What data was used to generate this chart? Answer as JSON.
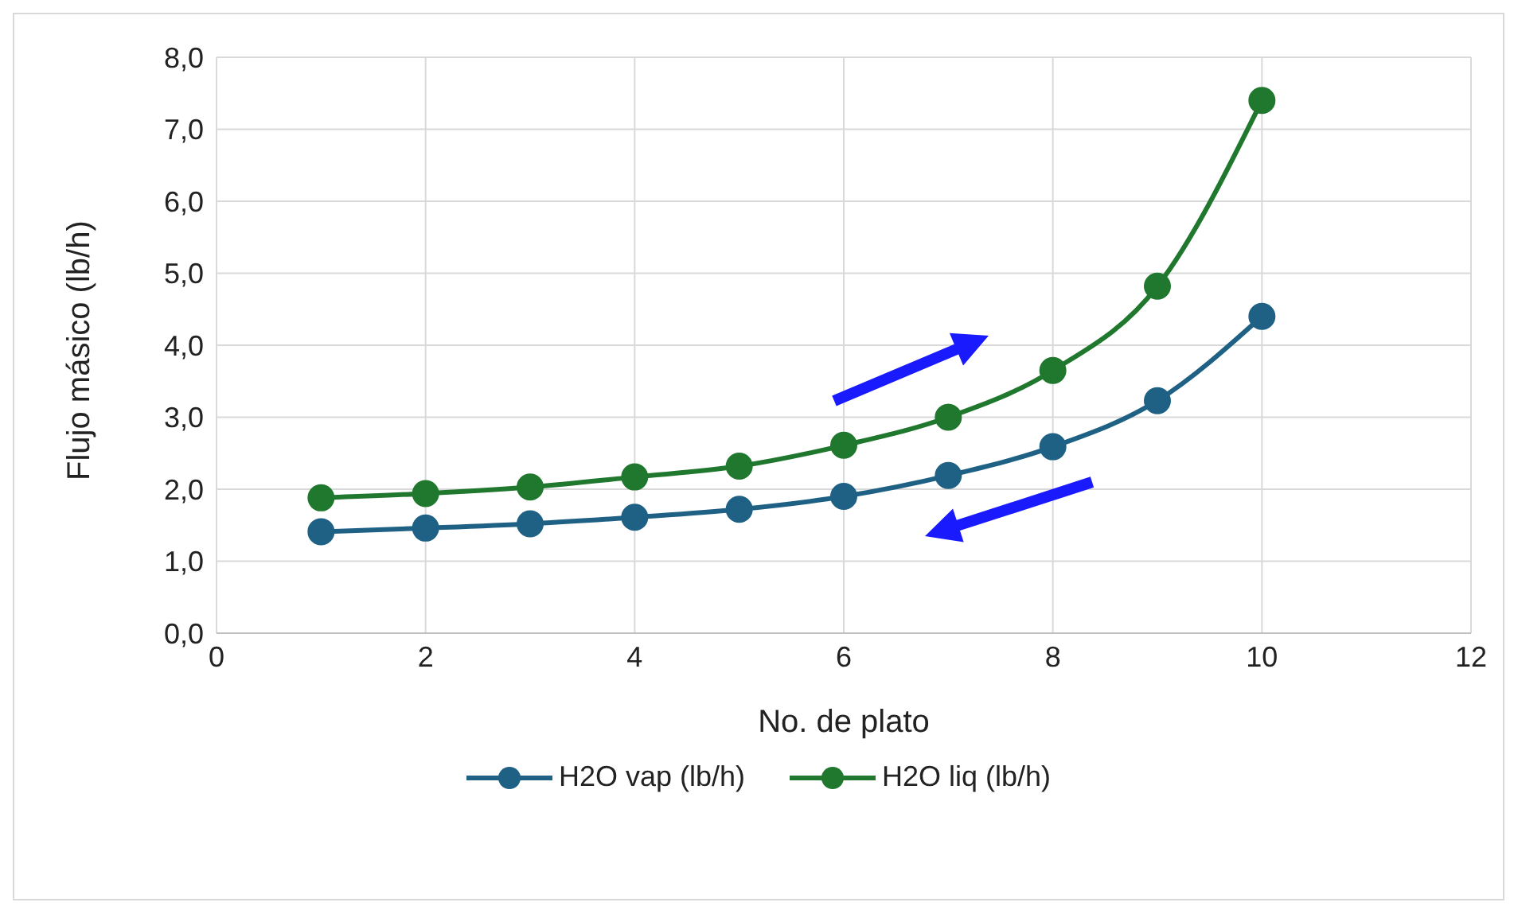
{
  "chart_data": {
    "type": "line",
    "xlabel": "No. de plato",
    "ylabel": "Flujo másico (lb/h)",
    "x": [
      1,
      2,
      3,
      4,
      5,
      6,
      7,
      8,
      9,
      10
    ],
    "series": [
      {
        "name": "H2O vap (lb/h)",
        "color": "#1f6184",
        "values": [
          1.41,
          1.46,
          1.52,
          1.61,
          1.72,
          1.9,
          2.19,
          2.59,
          3.23,
          4.4
        ]
      },
      {
        "name": "H2O liq (lb/h)",
        "color": "#20782e",
        "values": [
          1.88,
          1.94,
          2.03,
          2.17,
          2.32,
          2.61,
          3.0,
          3.65,
          4.82,
          7.4
        ]
      }
    ],
    "xlim": [
      0,
      12
    ],
    "xticks": [
      0,
      2,
      4,
      6,
      8,
      10,
      12
    ],
    "ylim": [
      0,
      8
    ],
    "yticks": [
      {
        "value": 0,
        "label": "0,0"
      },
      {
        "value": 1,
        "label": "1,0"
      },
      {
        "value": 2,
        "label": "2,0"
      },
      {
        "value": 3,
        "label": "3,0"
      },
      {
        "value": 4,
        "label": "4,0"
      },
      {
        "value": 5,
        "label": "5,0"
      },
      {
        "value": 6,
        "label": "6,0"
      },
      {
        "value": 7,
        "label": "7,0"
      },
      {
        "value": 8,
        "label": "8,0"
      }
    ],
    "grid": true,
    "legend": "bottom",
    "marker": "circle",
    "line_style": "solid"
  }
}
